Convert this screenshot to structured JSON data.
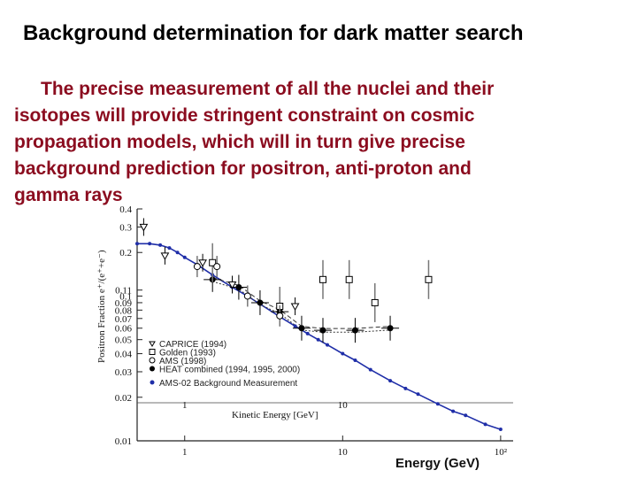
{
  "slide": {
    "title": "Background determination for dark matter search",
    "paragraph_lines": [
      "The precise measurement of  all the nuclei and their",
      "isotopes will provide stringent  constraint  on  cosmic",
      "propagation   models,  which will  in turn give  precise",
      "background  prediction for positron,  anti-proton  and",
      "gamma rays"
    ],
    "text_color": "#8b0c1f"
  },
  "chart_data": {
    "type": "scatter",
    "title": "",
    "xlabel": "Energy (GeV)",
    "xlabel_inner": "Kinetic Energy [GeV]",
    "ylabel": "Positron Fraction e⁺/(e⁺+e⁻)",
    "xscale": "log",
    "yscale": "log",
    "xlim": [
      0.5,
      120
    ],
    "ylim": [
      0.01,
      0.4
    ],
    "x_ticks": [
      "1",
      "10",
      "10²"
    ],
    "x_ticks_inner": [
      "1",
      "10"
    ],
    "y_ticks": [
      "0.4",
      "0.3",
      "0.2",
      "0.11",
      "0.1",
      "0.09",
      "0.08",
      "0.07",
      "0.06",
      "0.05",
      "0.04",
      "0.03",
      "0.02",
      "0.01"
    ],
    "legend": [
      "CAPRICE (1994)",
      "Golden (1993)",
      "AMS (1998)",
      "HEAT combined (1994, 1995, 2000)",
      "AMS-02 Background Measurement"
    ],
    "legend_position": "bottom-left",
    "series": [
      {
        "name": "AMS-02 Background Measurement",
        "color": "#1f2ea8",
        "x": [
          0.5,
          0.6,
          0.7,
          0.8,
          0.9,
          1.0,
          1.2,
          1.5,
          2.0,
          2.5,
          3.0,
          4.0,
          5.0,
          6.0,
          7.0,
          8.0,
          10.0,
          12.0,
          15.0,
          20.0,
          25.0,
          30.0,
          40.0,
          50.0,
          60.0,
          80.0,
          100.0
        ],
        "y": [
          0.23,
          0.23,
          0.225,
          0.215,
          0.2,
          0.185,
          0.165,
          0.14,
          0.115,
          0.1,
          0.088,
          0.072,
          0.062,
          0.055,
          0.05,
          0.046,
          0.04,
          0.036,
          0.031,
          0.026,
          0.023,
          0.021,
          0.018,
          0.016,
          0.015,
          0.013,
          0.012
        ]
      },
      {
        "name": "HEAT combined (1994, 1995, 2000)",
        "color": "#000000",
        "x": [
          1.5,
          2.2,
          3.0,
          4.0,
          5.5,
          7.5,
          12.0,
          20.0
        ],
        "y": [
          0.13,
          0.115,
          0.09,
          0.078,
          0.06,
          0.058,
          0.058,
          0.06
        ]
      },
      {
        "name": "CAPRICE (1994)",
        "color": "#000000",
        "x": [
          0.55,
          0.75,
          1.3,
          2.0,
          5.0
        ],
        "y": [
          0.3,
          0.19,
          0.17,
          0.12,
          0.085
        ]
      },
      {
        "name": "Golden (1993)",
        "color": "#000000",
        "x": [
          1.5,
          4.0,
          7.5,
          11.0,
          16.0,
          35.0
        ],
        "y": [
          0.17,
          0.085,
          0.13,
          0.13,
          0.09,
          0.13
        ]
      },
      {
        "name": "AMS (1998)",
        "color": "#000000",
        "x": [
          1.2,
          1.6,
          2.5,
          4.0
        ],
        "y": [
          0.16,
          0.16,
          0.1,
          0.073
        ]
      }
    ]
  }
}
